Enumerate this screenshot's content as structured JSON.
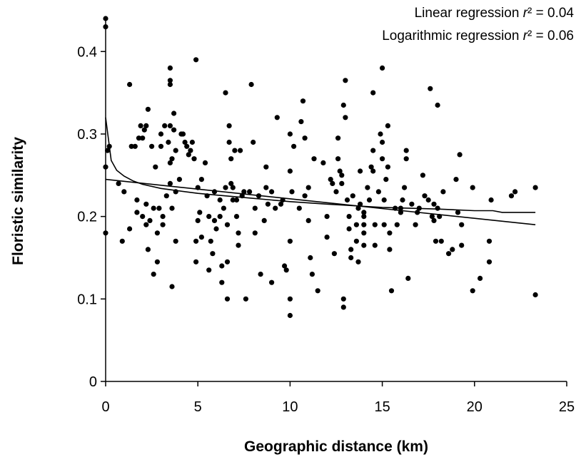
{
  "chart_data": {
    "type": "scatter",
    "title": "",
    "xlabel": "Geographic distance (km)",
    "ylabel": "Floristic similarity",
    "xlim": [
      0,
      25
    ],
    "ylim": [
      0,
      0.44
    ],
    "xticks": [
      "0",
      "5",
      "10",
      "15",
      "20",
      "25"
    ],
    "yticks": [
      "0",
      "0.1",
      "0.2",
      "0.3",
      "0.4"
    ],
    "grid": false,
    "annotations": [
      {
        "prefix": "Linear regression ",
        "symbol": "r",
        "suffix": "² = 0.04"
      },
      {
        "prefix": "Logarithmic regression ",
        "symbol": "r",
        "suffix": "² = 0.06"
      }
    ],
    "points": [
      [
        0.0,
        0.44
      ],
      [
        0.0,
        0.43
      ],
      [
        0.0,
        0.26
      ],
      [
        0.0,
        0.18
      ],
      [
        0.1,
        0.28
      ],
      [
        0.2,
        0.285
      ],
      [
        0.7,
        0.24
      ],
      [
        0.9,
        0.17
      ],
      [
        1.0,
        0.23
      ],
      [
        1.3,
        0.36
      ],
      [
        1.3,
        0.185
      ],
      [
        1.4,
        0.285
      ],
      [
        1.6,
        0.285
      ],
      [
        1.7,
        0.22
      ],
      [
        1.7,
        0.205
      ],
      [
        1.8,
        0.295
      ],
      [
        1.9,
        0.31
      ],
      [
        2.0,
        0.295
      ],
      [
        2.0,
        0.2
      ],
      [
        2.1,
        0.305
      ],
      [
        2.2,
        0.31
      ],
      [
        2.2,
        0.215
      ],
      [
        2.2,
        0.19
      ],
      [
        2.3,
        0.33
      ],
      [
        2.3,
        0.16
      ],
      [
        2.4,
        0.195
      ],
      [
        2.5,
        0.285
      ],
      [
        2.6,
        0.21
      ],
      [
        2.6,
        0.13
      ],
      [
        2.7,
        0.26
      ],
      [
        2.8,
        0.18
      ],
      [
        2.8,
        0.145
      ],
      [
        2.9,
        0.21
      ],
      [
        3.0,
        0.285
      ],
      [
        3.0,
        0.3
      ],
      [
        3.1,
        0.2
      ],
      [
        3.1,
        0.19
      ],
      [
        3.2,
        0.31
      ],
      [
        3.3,
        0.225
      ],
      [
        3.4,
        0.29
      ],
      [
        3.5,
        0.38
      ],
      [
        3.5,
        0.365
      ],
      [
        3.5,
        0.36
      ],
      [
        3.5,
        0.31
      ],
      [
        3.5,
        0.265
      ],
      [
        3.5,
        0.24
      ],
      [
        3.6,
        0.27
      ],
      [
        3.6,
        0.21
      ],
      [
        3.6,
        0.115
      ],
      [
        3.7,
        0.325
      ],
      [
        3.7,
        0.305
      ],
      [
        3.8,
        0.28
      ],
      [
        3.8,
        0.23
      ],
      [
        3.8,
        0.17
      ],
      [
        4.0,
        0.245
      ],
      [
        4.1,
        0.3
      ],
      [
        4.2,
        0.3
      ],
      [
        4.3,
        0.29
      ],
      [
        4.4,
        0.285
      ],
      [
        4.5,
        0.275
      ],
      [
        4.6,
        0.28
      ],
      [
        4.7,
        0.29
      ],
      [
        4.8,
        0.27
      ],
      [
        4.9,
        0.39
      ],
      [
        4.9,
        0.17
      ],
      [
        4.9,
        0.145
      ],
      [
        5.0,
        0.195
      ],
      [
        5.0,
        0.235
      ],
      [
        5.1,
        0.205
      ],
      [
        5.2,
        0.245
      ],
      [
        5.2,
        0.175
      ],
      [
        5.4,
        0.265
      ],
      [
        5.5,
        0.225
      ],
      [
        5.6,
        0.2
      ],
      [
        5.6,
        0.135
      ],
      [
        5.7,
        0.17
      ],
      [
        5.8,
        0.155
      ],
      [
        5.9,
        0.23
      ],
      [
        5.9,
        0.195
      ],
      [
        6.0,
        0.185
      ],
      [
        6.2,
        0.22
      ],
      [
        6.2,
        0.2
      ],
      [
        6.3,
        0.14
      ],
      [
        6.3,
        0.12
      ],
      [
        6.4,
        0.21
      ],
      [
        6.5,
        0.35
      ],
      [
        6.5,
        0.235
      ],
      [
        6.6,
        0.19
      ],
      [
        6.6,
        0.145
      ],
      [
        6.6,
        0.1
      ],
      [
        6.7,
        0.31
      ],
      [
        6.7,
        0.29
      ],
      [
        6.8,
        0.27
      ],
      [
        6.8,
        0.24
      ],
      [
        6.9,
        0.235
      ],
      [
        6.9,
        0.22
      ],
      [
        7.0,
        0.28
      ],
      [
        7.1,
        0.22
      ],
      [
        7.1,
        0.2
      ],
      [
        7.2,
        0.18
      ],
      [
        7.2,
        0.165
      ],
      [
        7.3,
        0.28
      ],
      [
        7.4,
        0.225
      ],
      [
        7.5,
        0.23
      ],
      [
        7.6,
        0.1
      ],
      [
        7.8,
        0.23
      ],
      [
        7.9,
        0.36
      ],
      [
        8.0,
        0.29
      ],
      [
        8.1,
        0.21
      ],
      [
        8.1,
        0.18
      ],
      [
        8.3,
        0.225
      ],
      [
        8.4,
        0.13
      ],
      [
        8.6,
        0.195
      ],
      [
        8.7,
        0.26
      ],
      [
        8.7,
        0.235
      ],
      [
        8.8,
        0.215
      ],
      [
        9.0,
        0.23
      ],
      [
        9.0,
        0.12
      ],
      [
        9.2,
        0.21
      ],
      [
        9.3,
        0.32
      ],
      [
        9.5,
        0.215
      ],
      [
        9.6,
        0.22
      ],
      [
        9.7,
        0.14
      ],
      [
        9.8,
        0.135
      ],
      [
        10.0,
        0.3
      ],
      [
        10.0,
        0.255
      ],
      [
        10.0,
        0.17
      ],
      [
        10.0,
        0.1
      ],
      [
        10.0,
        0.08
      ],
      [
        10.1,
        0.23
      ],
      [
        10.2,
        0.285
      ],
      [
        10.5,
        0.21
      ],
      [
        10.6,
        0.315
      ],
      [
        10.7,
        0.34
      ],
      [
        10.8,
        0.225
      ],
      [
        10.8,
        0.295
      ],
      [
        11.0,
        0.235
      ],
      [
        11.0,
        0.195
      ],
      [
        11.1,
        0.15
      ],
      [
        11.2,
        0.13
      ],
      [
        11.3,
        0.27
      ],
      [
        11.5,
        0.11
      ],
      [
        11.8,
        0.265
      ],
      [
        12.0,
        0.2
      ],
      [
        12.0,
        0.175
      ],
      [
        12.2,
        0.245
      ],
      [
        12.3,
        0.24
      ],
      [
        12.4,
        0.155
      ],
      [
        12.5,
        0.23
      ],
      [
        12.6,
        0.295
      ],
      [
        12.6,
        0.27
      ],
      [
        12.7,
        0.255
      ],
      [
        12.8,
        0.25
      ],
      [
        12.8,
        0.24
      ],
      [
        12.9,
        0.335
      ],
      [
        12.9,
        0.1
      ],
      [
        12.9,
        0.09
      ],
      [
        13.0,
        0.365
      ],
      [
        13.0,
        0.32
      ],
      [
        13.1,
        0.22
      ],
      [
        13.2,
        0.2
      ],
      [
        13.2,
        0.185
      ],
      [
        13.3,
        0.16
      ],
      [
        13.3,
        0.15
      ],
      [
        13.4,
        0.225
      ],
      [
        13.6,
        0.19
      ],
      [
        13.6,
        0.17
      ],
      [
        13.7,
        0.145
      ],
      [
        13.7,
        0.21
      ],
      [
        13.8,
        0.215
      ],
      [
        13.8,
        0.255
      ],
      [
        14.0,
        0.205
      ],
      [
        14.0,
        0.2
      ],
      [
        14.0,
        0.19
      ],
      [
        14.0,
        0.18
      ],
      [
        14.0,
        0.165
      ],
      [
        14.2,
        0.235
      ],
      [
        14.3,
        0.22
      ],
      [
        14.4,
        0.26
      ],
      [
        14.5,
        0.35
      ],
      [
        14.5,
        0.255
      ],
      [
        14.5,
        0.28
      ],
      [
        14.6,
        0.19
      ],
      [
        14.6,
        0.165
      ],
      [
        14.8,
        0.23
      ],
      [
        14.9,
        0.3
      ],
      [
        15.0,
        0.38
      ],
      [
        15.0,
        0.29
      ],
      [
        15.0,
        0.27
      ],
      [
        15.1,
        0.22
      ],
      [
        15.1,
        0.19
      ],
      [
        15.2,
        0.245
      ],
      [
        15.3,
        0.26
      ],
      [
        15.3,
        0.31
      ],
      [
        15.4,
        0.18
      ],
      [
        15.4,
        0.16
      ],
      [
        15.5,
        0.11
      ],
      [
        15.7,
        0.21
      ],
      [
        15.8,
        0.19
      ],
      [
        16.0,
        0.21
      ],
      [
        16.0,
        0.205
      ],
      [
        16.1,
        0.22
      ],
      [
        16.2,
        0.235
      ],
      [
        16.3,
        0.28
      ],
      [
        16.3,
        0.27
      ],
      [
        16.4,
        0.125
      ],
      [
        16.6,
        0.215
      ],
      [
        16.8,
        0.19
      ],
      [
        16.9,
        0.205
      ],
      [
        17.0,
        0.21
      ],
      [
        17.2,
        0.25
      ],
      [
        17.3,
        0.225
      ],
      [
        17.5,
        0.22
      ],
      [
        17.6,
        0.355
      ],
      [
        17.7,
        0.2
      ],
      [
        17.8,
        0.215
      ],
      [
        17.8,
        0.195
      ],
      [
        17.9,
        0.17
      ],
      [
        18.0,
        0.335
      ],
      [
        18.0,
        0.21
      ],
      [
        18.1,
        0.2
      ],
      [
        18.2,
        0.17
      ],
      [
        18.3,
        0.23
      ],
      [
        18.6,
        0.155
      ],
      [
        18.8,
        0.16
      ],
      [
        19.0,
        0.245
      ],
      [
        19.1,
        0.205
      ],
      [
        19.2,
        0.275
      ],
      [
        19.3,
        0.19
      ],
      [
        19.3,
        0.165
      ],
      [
        19.9,
        0.235
      ],
      [
        19.9,
        0.11
      ],
      [
        20.3,
        0.125
      ],
      [
        20.8,
        0.17
      ],
      [
        20.8,
        0.145
      ],
      [
        20.9,
        0.22
      ],
      [
        22.0,
        0.225
      ],
      [
        22.2,
        0.23
      ],
      [
        23.3,
        0.235
      ],
      [
        23.3,
        0.105
      ]
    ],
    "series": [
      {
        "kind": "linear-regression",
        "x": [
          0,
          23.3
        ],
        "y": [
          0.245,
          0.19
        ]
      },
      {
        "kind": "logarithmic-regression",
        "x": [
          0,
          0.3,
          0.6,
          1,
          1.5,
          2,
          3,
          4,
          5,
          6,
          8,
          10,
          12,
          15,
          18,
          20,
          21,
          21.5,
          22,
          23.3
        ],
        "y": [
          0.32,
          0.268,
          0.256,
          0.249,
          0.243,
          0.239,
          0.234,
          0.231,
          0.228,
          0.226,
          0.222,
          0.218,
          0.215,
          0.211,
          0.209,
          0.207,
          0.207,
          0.205,
          0.205,
          0.205
        ]
      }
    ]
  }
}
